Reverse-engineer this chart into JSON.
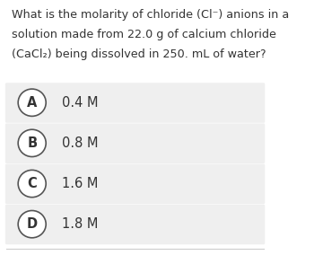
{
  "question_lines": [
    "What is the molarity of chloride (Cl⁻) anions in a",
    "solution made from 22.0 g of calcium chloride",
    "(CaCl₂) being dissolved in 250. mL of water?"
  ],
  "options": [
    {
      "label": "A",
      "text": "0.4 M"
    },
    {
      "label": "B",
      "text": "0.8 M"
    },
    {
      "label": "C",
      "text": "1.6 M"
    },
    {
      "label": "D",
      "text": "1.8 M"
    }
  ],
  "bg_color": "#ffffff",
  "option_bg_color": "#efefef",
  "text_color": "#333333",
  "circle_edge_color": "#555555",
  "circle_face_color": "#ffffff",
  "separator_color": "#cccccc",
  "question_fontsize": 9.2,
  "option_fontsize": 10.5,
  "label_fontsize": 10.5
}
